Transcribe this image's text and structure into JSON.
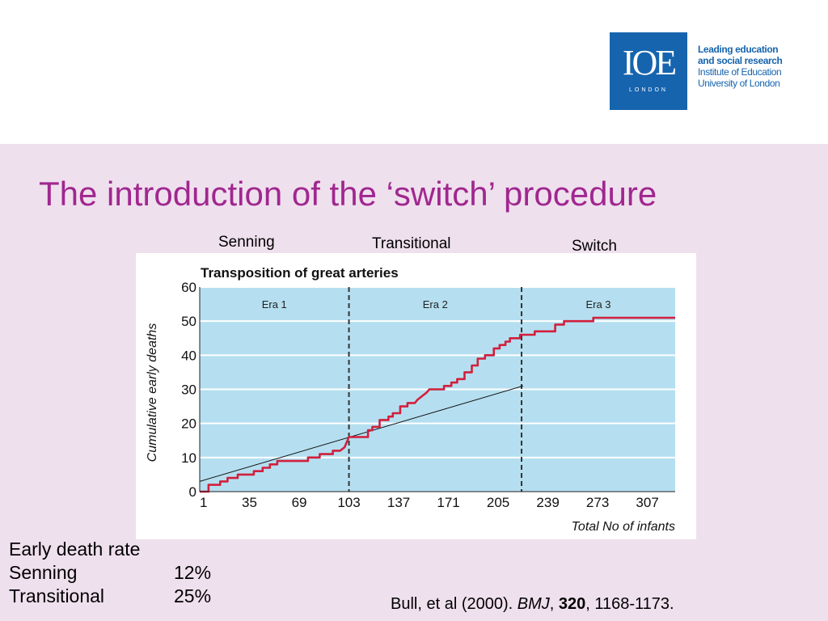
{
  "logo": {
    "mark": "IOE",
    "sub": "LONDON",
    "line1": "Leading education",
    "line2": "and social research",
    "line3": "Institute of Education",
    "line4": "University of London"
  },
  "title": "The introduction of the ‘switch’ procedure",
  "era_labels_top": [
    "Senning",
    "Transitional",
    "Switch"
  ],
  "chart_data": {
    "type": "line",
    "title": "Transposition of great arteries",
    "xlabel": "Total No of infants",
    "ylabel": "Cumulative early deaths",
    "x_ticks": [
      "1",
      "35",
      "69",
      "103",
      "137",
      "171",
      "205",
      "239",
      "273",
      "307"
    ],
    "y_ticks": [
      "0",
      "10",
      "20",
      "30",
      "40",
      "50",
      "60"
    ],
    "xlim": [
      1,
      326
    ],
    "ylim": [
      0,
      60
    ],
    "grid": true,
    "eras": [
      {
        "label": "Era 1",
        "start": 1,
        "end": 103
      },
      {
        "label": "Era 2",
        "start": 103,
        "end": 221
      },
      {
        "label": "Era 3",
        "start": 221,
        "end": 326
      }
    ],
    "era_boundaries": [
      103,
      221
    ],
    "series": [
      {
        "color": "#d21f3c",
        "x": [
          1,
          7,
          7,
          15,
          15,
          20,
          20,
          27,
          27,
          38,
          38,
          44,
          44,
          49,
          49,
          54,
          54,
          75,
          75,
          83,
          83,
          92,
          92,
          97,
          100,
          103,
          108,
          108,
          116,
          116,
          119,
          119,
          124,
          124,
          130,
          130,
          133,
          133,
          138,
          138,
          143,
          143,
          148,
          150,
          153,
          156,
          158,
          162,
          168,
          168,
          173,
          173,
          177,
          177,
          182,
          182,
          187,
          187,
          191,
          191,
          196,
          196,
          202,
          202,
          206,
          206,
          210,
          210,
          213,
          213,
          218,
          218,
          220,
          220,
          222,
          222,
          230,
          230,
          244,
          244,
          250,
          250,
          262,
          262,
          270,
          270,
          274,
          274,
          326
        ],
        "values": [
          0,
          0,
          2,
          2,
          3,
          3,
          4,
          4,
          5,
          5,
          6,
          6,
          7,
          7,
          8,
          8,
          9,
          9,
          10,
          10,
          11,
          11,
          12,
          12,
          13,
          16,
          16,
          16,
          16,
          18,
          18,
          19,
          19,
          21,
          21,
          22,
          22,
          23,
          23,
          25,
          25,
          26,
          26,
          27,
          28,
          29,
          30,
          30,
          30,
          31,
          31,
          32,
          32,
          33,
          33,
          35,
          35,
          37,
          37,
          39,
          39,
          40,
          40,
          42,
          42,
          43,
          43,
          44,
          44,
          45,
          45,
          45,
          45,
          46,
          46,
          46,
          46,
          47,
          47,
          49,
          49,
          50,
          50,
          50,
          50,
          51,
          51,
          51,
          51
        ]
      }
    ],
    "trend_line": {
      "x": [
        1,
        222
      ],
      "y": [
        3,
        31
      ]
    }
  },
  "notes": {
    "heading": "Early death rate",
    "rows": [
      {
        "label": "Senning",
        "value": "12%"
      },
      {
        "label": "Transitional",
        "value": "25%"
      }
    ]
  },
  "citation": {
    "authors": "Bull, et al (2000). ",
    "journal": "BMJ",
    "sep": ", ",
    "volume": "320",
    "pages": ", 1168-1173."
  }
}
